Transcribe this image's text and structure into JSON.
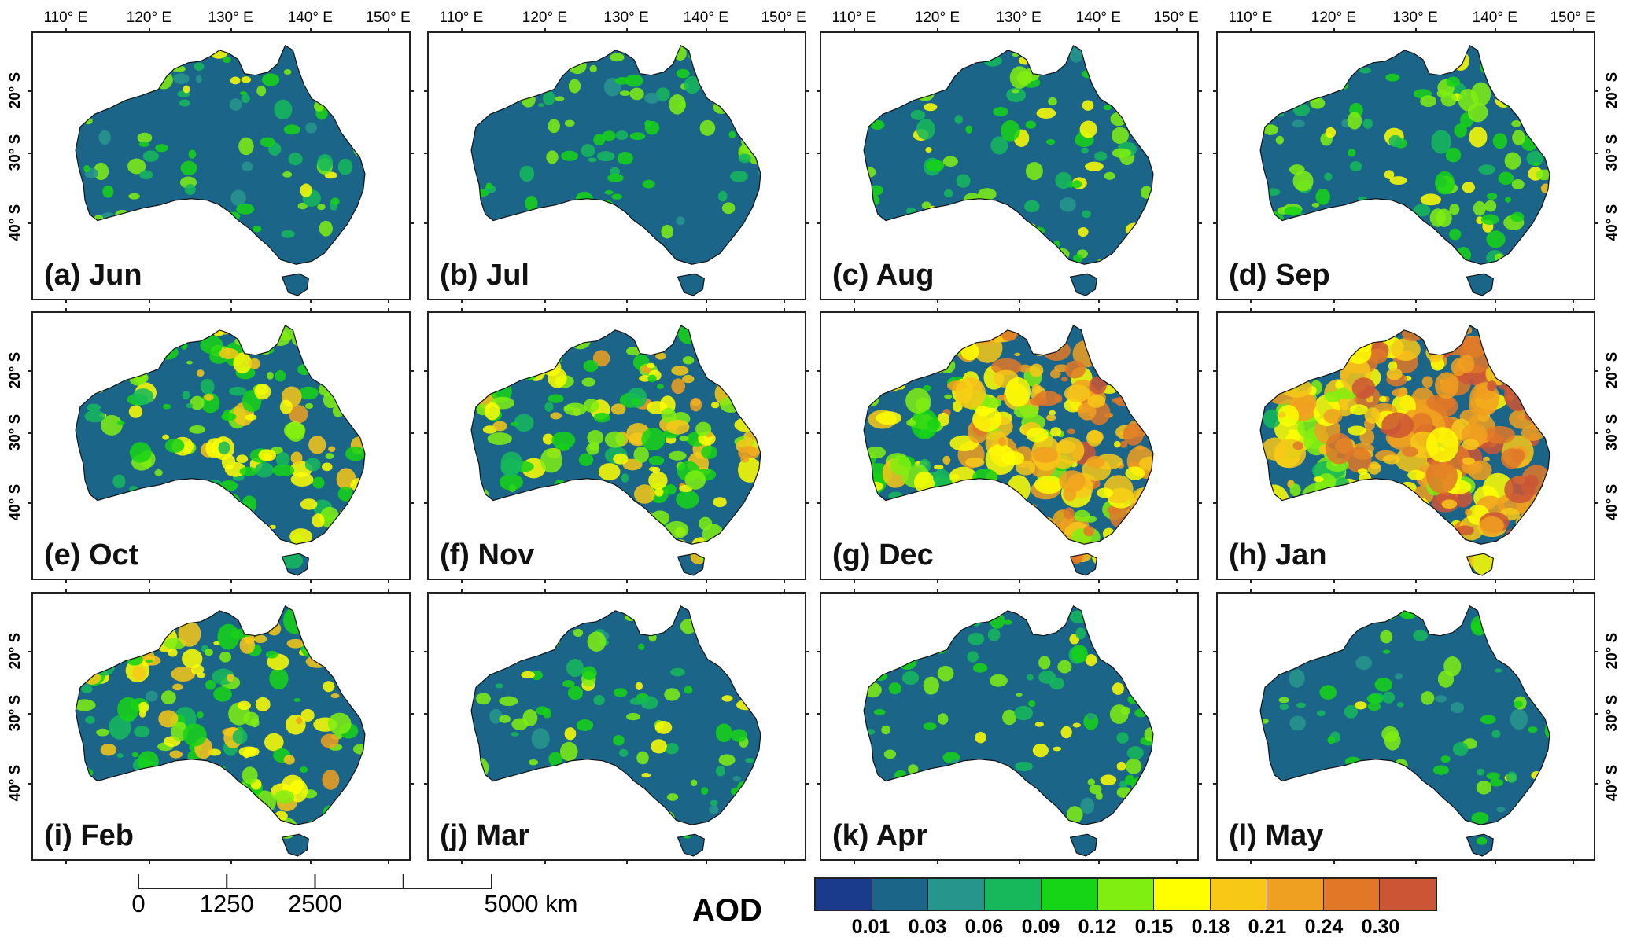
{
  "figure": {
    "top_axis_labels": [
      "110° E",
      "120° E",
      "130° E",
      "140° E",
      "150° E"
    ],
    "right_axis_labels": [
      "20° S",
      "30° S",
      "40° S"
    ],
    "panels": [
      {
        "label": "(a) Jun",
        "intensity": 0.18
      },
      {
        "label": "(b) Jul",
        "intensity": 0.16
      },
      {
        "label": "(c) Aug",
        "intensity": 0.22
      },
      {
        "label": "(d) Sep",
        "intensity": 0.3
      },
      {
        "label": "(e) Oct",
        "intensity": 0.38
      },
      {
        "label": "(f) Nov",
        "intensity": 0.48
      },
      {
        "label": "(g) Dec",
        "intensity": 0.8
      },
      {
        "label": "(h) Jan",
        "intensity": 0.95
      },
      {
        "label": "(i) Feb",
        "intensity": 0.45
      },
      {
        "label": "(j) Mar",
        "intensity": 0.2
      },
      {
        "label": "(k) Apr",
        "intensity": 0.17
      },
      {
        "label": "(l) May",
        "intensity": 0.12
      }
    ]
  },
  "scale_bar": {
    "labels": [
      "0",
      "1250",
      "2500",
      "5000 km"
    ],
    "max_km": 5000,
    "tick_values": [
      0,
      1250,
      2500,
      3750,
      5000
    ]
  },
  "colorbar": {
    "title": "AOD",
    "colors": [
      "#1a3a8c",
      "#1b6589",
      "#26968c",
      "#15b85a",
      "#16d416",
      "#80ee10",
      "#ffff00",
      "#f8c817",
      "#f0a020",
      "#e07828",
      "#cc5535"
    ],
    "tick_labels": [
      "0.01",
      "0.03",
      "0.06",
      "0.09",
      "0.12",
      "0.15",
      "0.18",
      "0.21",
      "0.24",
      "0.30"
    ]
  }
}
